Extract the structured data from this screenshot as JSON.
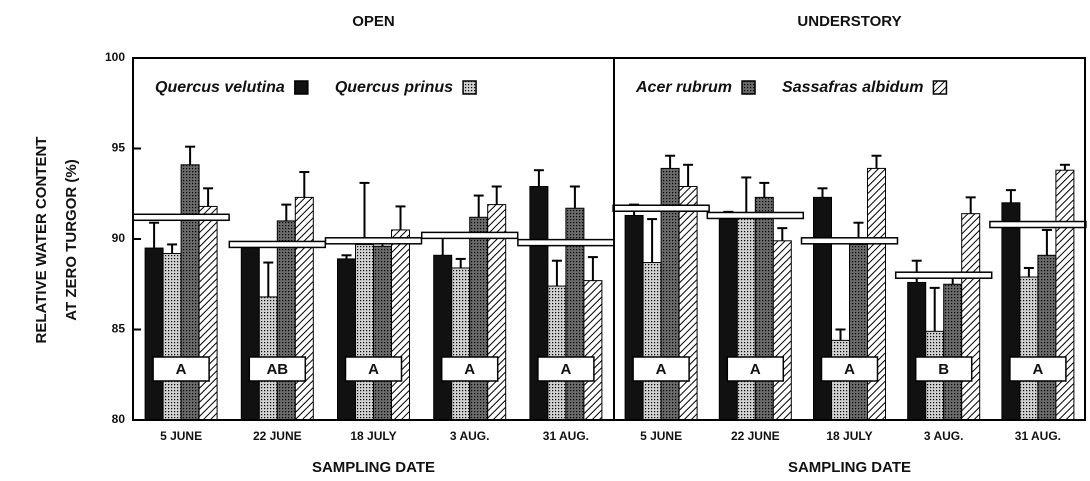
{
  "chart_data": [
    {
      "type": "bar",
      "title": "OPEN",
      "xlabel": "SAMPLING DATE",
      "ylabel": [
        "RELATIVE WATER CONTENT",
        "AT ZERO TURGOR (%)"
      ],
      "ylim": [
        80,
        100
      ],
      "yticks": [
        80,
        85,
        90,
        95,
        100
      ],
      "categories": [
        "5 JUNE",
        "22 JUNE",
        "18 JULY",
        "3 AUG.",
        "31 AUG."
      ],
      "series": [
        {
          "name": "Quercus velutina",
          "color": "#111111",
          "pattern": "solid",
          "values": [
            89.5,
            89.6,
            88.9,
            89.1,
            92.9
          ],
          "errors": [
            1.4,
            0.2,
            0.2,
            1.0,
            0.9
          ]
        },
        {
          "name": "Quercus prinus",
          "color": "#d0d0d0",
          "pattern": "dots",
          "values": [
            89.2,
            86.8,
            89.7,
            88.4,
            87.4
          ],
          "errors": [
            0.5,
            1.9,
            3.4,
            0.5,
            1.4
          ]
        },
        {
          "color": "#6a6a6a",
          "pattern": "dots",
          "values": [
            94.1,
            91.0,
            89.6,
            91.2,
            91.7
          ],
          "errors": [
            1.0,
            0.9,
            0.3,
            1.2,
            1.2
          ]
        },
        {
          "color": "#ffffff",
          "pattern": "hatch",
          "values": [
            91.8,
            92.3,
            90.5,
            91.9,
            87.7
          ],
          "errors": [
            1.0,
            1.4,
            1.3,
            1.0,
            1.3
          ]
        }
      ],
      "means": [
        91.2,
        89.7,
        89.9,
        90.2,
        89.8
      ],
      "letters": [
        "A",
        "AB",
        "A",
        "A",
        "A"
      ]
    },
    {
      "type": "bar",
      "title": "UNDERSTORY",
      "xlabel": "SAMPLING DATE",
      "ylim": [
        80,
        100
      ],
      "categories": [
        "5 JUNE",
        "22 JUNE",
        "18 JULY",
        "3 AUG.",
        "31 AUG."
      ],
      "series": [
        {
          "color": "#111111",
          "pattern": "solid",
          "values": [
            91.3,
            91.2,
            92.3,
            87.6,
            92.0
          ],
          "errors": [
            0.6,
            0.3,
            0.5,
            1.2,
            0.7
          ]
        },
        {
          "color": "#d0d0d0",
          "pattern": "dots",
          "values": [
            88.7,
            91.3,
            84.4,
            84.9,
            87.9
          ],
          "errors": [
            2.4,
            2.1,
            0.6,
            2.4,
            0.5
          ]
        },
        {
          "name": "Acer rubrum",
          "color": "#6a6a6a",
          "pattern": "dots",
          "values": [
            93.9,
            92.3,
            89.7,
            87.5,
            89.1
          ],
          "errors": [
            0.7,
            0.8,
            1.2,
            0.6,
            1.4
          ]
        },
        {
          "name": "Sassafras albidum",
          "color": "#ffffff",
          "pattern": "hatch",
          "values": [
            92.9,
            89.9,
            93.9,
            91.4,
            93.8
          ],
          "errors": [
            1.2,
            0.7,
            0.7,
            0.9,
            0.3
          ]
        }
      ],
      "means": [
        91.7,
        91.3,
        89.9,
        88.0,
        90.8
      ],
      "letters": [
        "A",
        "A",
        "A",
        "B",
        "A"
      ]
    }
  ]
}
